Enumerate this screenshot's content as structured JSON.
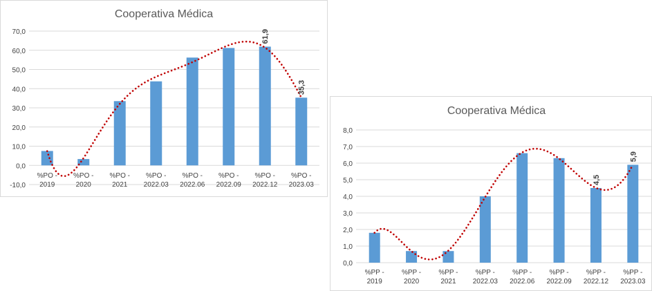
{
  "chart_data": [
    {
      "type": "bar",
      "title": "Cooperativa Médica",
      "categories": [
        [
          "%PO -",
          "2019"
        ],
        [
          "%PO -",
          "2020"
        ],
        [
          "%PO -",
          "2021"
        ],
        [
          "%PO -",
          "2022.03"
        ],
        [
          "%PO -",
          "2022.06"
        ],
        [
          "%PO -",
          "2022.09"
        ],
        [
          "%PO -",
          "2022.12"
        ],
        [
          "%PO -",
          "2023.03"
        ]
      ],
      "values": [
        7.5,
        3.3,
        33.5,
        43.8,
        56.2,
        61.2,
        61.9,
        35.3
      ],
      "data_labels": [
        null,
        null,
        null,
        null,
        null,
        null,
        "61,9",
        "35,3"
      ],
      "ylim": [
        -10,
        70
      ],
      "yticks": [
        "-10,0",
        "0,0",
        "10,0",
        "20,0",
        "30,0",
        "40,0",
        "50,0",
        "60,0",
        "70,0"
      ],
      "trendline": "polynomial (dotted)",
      "grid": true,
      "colors": {
        "bar": "#5b9bd5",
        "trend": "#c00000"
      }
    },
    {
      "type": "bar",
      "title": "Cooperativa Médica",
      "categories": [
        [
          "%PP -",
          "2019"
        ],
        [
          "%PP -",
          "2020"
        ],
        [
          "%PP -",
          "2021"
        ],
        [
          "%PP -",
          "2022.03"
        ],
        [
          "%PP -",
          "2022.06"
        ],
        [
          "%PP -",
          "2022.09"
        ],
        [
          "%PP -",
          "2022.12"
        ],
        [
          "%PP -",
          "2023.03"
        ]
      ],
      "values": [
        1.8,
        0.7,
        0.7,
        4.0,
        6.6,
        6.3,
        4.5,
        5.9
      ],
      "data_labels": [
        null,
        null,
        null,
        null,
        null,
        null,
        "4,5",
        "5,9"
      ],
      "ylim": [
        0,
        8
      ],
      "yticks": [
        "0,0",
        "1,0",
        "2,0",
        "3,0",
        "4,0",
        "5,0",
        "6,0",
        "7,0",
        "8,0"
      ],
      "trendline": "polynomial (dotted)",
      "grid": true,
      "colors": {
        "bar": "#5b9bd5",
        "trend": "#c00000"
      }
    }
  ]
}
